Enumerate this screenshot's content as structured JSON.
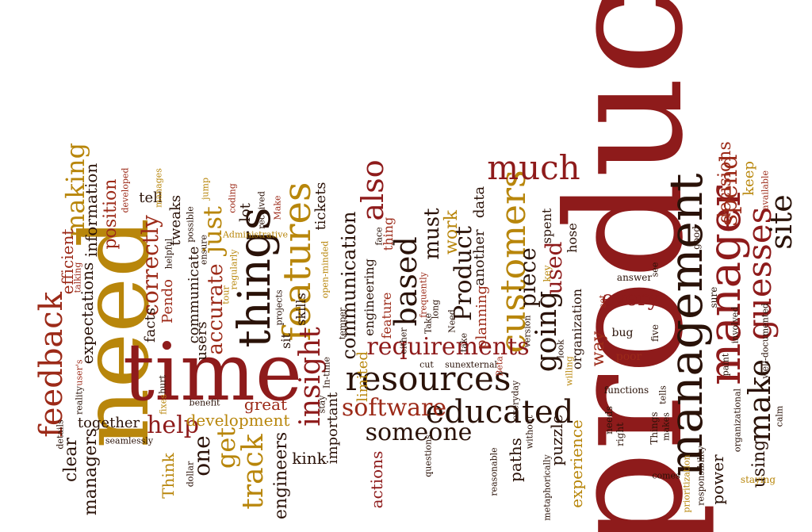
{
  "colors": {
    "dark_red": "#8e1b1b",
    "maroon": "#5a0f12",
    "brick": "#9c2a18",
    "burnt_orange": "#a64a14",
    "gold": "#b8860b",
    "ochre": "#c07a12",
    "near_black": "#2a1208"
  },
  "words": [
    {
      "text": "product",
      "color": "#8e1b1b"
    },
    {
      "text": "need",
      "color": "#b8860b"
    },
    {
      "text": "time",
      "color": "#8e1b1b"
    },
    {
      "text": "management",
      "color": "#2a1208"
    },
    {
      "text": "manager",
      "color": "#8e1b1b"
    },
    {
      "text": "things",
      "color": "#2a1208"
    },
    {
      "text": "features",
      "color": "#b8860b"
    },
    {
      "text": "customers",
      "color": "#b8860b"
    },
    {
      "text": "resources",
      "color": "#2a1208"
    },
    {
      "text": "educated",
      "color": "#2a1208"
    },
    {
      "text": "requirements",
      "color": "#8e1b1b"
    },
    {
      "text": "feedback",
      "color": "#9c2a18"
    },
    {
      "text": "much",
      "color": "#8e1b1b"
    },
    {
      "text": "guesses",
      "color": "#8e1b1b"
    },
    {
      "text": "insight",
      "color": "#8e1b1b"
    },
    {
      "text": "also",
      "color": "#8e1b1b"
    },
    {
      "text": "software",
      "color": "#9c2a18"
    },
    {
      "text": "someone",
      "color": "#2a1208"
    },
    {
      "text": "going",
      "color": "#2a1208"
    },
    {
      "text": "Product",
      "color": "#2a1208"
    },
    {
      "text": "make",
      "color": "#2a1208"
    },
    {
      "text": "site",
      "color": "#2a1208"
    },
    {
      "text": "making",
      "color": "#b8860b"
    },
    {
      "text": "track",
      "color": "#b8860b"
    },
    {
      "text": "based",
      "color": "#2a1208"
    },
    {
      "text": "spend",
      "color": "#9c2a18"
    },
    {
      "text": "help",
      "color": "#8e1b1b"
    },
    {
      "text": "get",
      "color": "#b8860b"
    },
    {
      "text": "correctly",
      "color": "#9c2a18"
    },
    {
      "text": "communication",
      "color": "#2a1208"
    },
    {
      "text": "just",
      "color": "#b8860b"
    },
    {
      "text": "piece",
      "color": "#2a1208"
    },
    {
      "text": "used",
      "color": "#8e1b1b"
    },
    {
      "text": "decisions",
      "color": "#9c2a18"
    },
    {
      "text": "every",
      "color": "#8e1b1b"
    },
    {
      "text": "must",
      "color": "#2a1208"
    },
    {
      "text": "work",
      "color": "#b8860b"
    },
    {
      "text": "accurate",
      "color": "#9c2a18"
    },
    {
      "text": "efficient",
      "color": "#9c2a18"
    },
    {
      "text": "position",
      "color": "#9c2a18"
    },
    {
      "text": "information",
      "color": "#2a1208"
    },
    {
      "text": "expectations",
      "color": "#2a1208"
    },
    {
      "text": "one",
      "color": "#2a1208"
    },
    {
      "text": "clear",
      "color": "#2a1208"
    },
    {
      "text": "together",
      "color": "#2a1208"
    },
    {
      "text": "managers",
      "color": "#2a1208"
    },
    {
      "text": "Think",
      "color": "#b8860b"
    },
    {
      "text": "development",
      "color": "#b8860b"
    },
    {
      "text": "great",
      "color": "#9c2a18"
    },
    {
      "text": "engineers",
      "color": "#2a1208"
    },
    {
      "text": "kink",
      "color": "#2a1208"
    },
    {
      "text": "lot",
      "color": "#2a1208"
    },
    {
      "text": "tweaks",
      "color": "#2a1208"
    },
    {
      "text": "communicate",
      "color": "#2a1208"
    },
    {
      "text": "users",
      "color": "#2a1208"
    },
    {
      "text": "facts",
      "color": "#2a1208"
    },
    {
      "text": "Pendo",
      "color": "#9c2a18"
    },
    {
      "text": "tell",
      "color": "#2a1208"
    },
    {
      "text": "skills",
      "color": "#2a1208"
    },
    {
      "text": "sit",
      "color": "#2a1208"
    },
    {
      "text": "tickets",
      "color": "#2a1208"
    },
    {
      "text": "important",
      "color": "#2a1208"
    },
    {
      "text": "actions",
      "color": "#8e1b1b"
    },
    {
      "text": "limited",
      "color": "#b8860b"
    },
    {
      "text": "engineering",
      "color": "#2a1208"
    },
    {
      "text": "feature",
      "color": "#9c2a18"
    },
    {
      "text": "thing",
      "color": "#9c2a18"
    },
    {
      "text": "planning",
      "color": "#9c2a18"
    },
    {
      "text": "another",
      "color": "#2a1208"
    },
    {
      "text": "data",
      "color": "#2a1208"
    },
    {
      "text": "paths",
      "color": "#2a1208"
    },
    {
      "text": "puzzle",
      "color": "#2a1208"
    },
    {
      "text": "experience",
      "color": "#b8860b"
    },
    {
      "text": "spent",
      "color": "#2a1208"
    },
    {
      "text": "hose",
      "color": "#2a1208"
    },
    {
      "text": "organization",
      "color": "#2a1208"
    },
    {
      "text": "way",
      "color": "#9c2a18"
    },
    {
      "text": "using",
      "color": "#2a1208"
    },
    {
      "text": "power",
      "color": "#2a1208"
    },
    {
      "text": "keep",
      "color": "#b8860b"
    },
    {
      "text": "answer",
      "color": "#2a1208"
    },
    {
      "text": "bug",
      "color": "#2a1208"
    },
    {
      "text": "poor",
      "color": "#9c2a18"
    },
    {
      "text": "five",
      "color": "#2a1208"
    },
    {
      "text": "functions",
      "color": "#2a1208"
    },
    {
      "text": "tells",
      "color": "#2a1208"
    },
    {
      "text": "needs",
      "color": "#2a1208"
    },
    {
      "text": "right",
      "color": "#2a1208"
    },
    {
      "text": "Things",
      "color": "#2a1208"
    },
    {
      "text": "makes",
      "color": "#2a1208"
    },
    {
      "text": "comes",
      "color": "#2a1208"
    },
    {
      "text": "prioritization",
      "color": "#b8860b"
    },
    {
      "text": "responsibility",
      "color": "#2a1208"
    },
    {
      "text": "staying",
      "color": "#b8860b"
    },
    {
      "text": "calm",
      "color": "#2a1208"
    },
    {
      "text": "well-documented",
      "color": "#2a1208"
    },
    {
      "text": "available",
      "color": "#9c2a18"
    },
    {
      "text": "good",
      "color": "#2a1208"
    },
    {
      "text": "sure",
      "color": "#2a1208"
    },
    {
      "text": "paint",
      "color": "#2a1208"
    },
    {
      "text": "involved",
      "color": "#2a1208"
    },
    {
      "text": "organizational",
      "color": "#2a1208"
    },
    {
      "text": "see",
      "color": "#2a1208"
    },
    {
      "text": "set",
      "color": "#9c2a18"
    },
    {
      "text": "key",
      "color": "#b8860b"
    },
    {
      "text": "look",
      "color": "#2a1208"
    },
    {
      "text": "willing",
      "color": "#b8860b"
    },
    {
      "text": "everyday",
      "color": "#2a1208"
    },
    {
      "text": "Beta",
      "color": "#9c2a18"
    },
    {
      "text": "external",
      "color": "#2a1208"
    },
    {
      "text": "version",
      "color": "#2a1208"
    },
    {
      "text": "without",
      "color": "#2a1208"
    },
    {
      "text": "metaphorically",
      "color": "#2a1208"
    },
    {
      "text": "reasonable",
      "color": "#2a1208"
    },
    {
      "text": "take",
      "color": "#2a1208"
    },
    {
      "text": "frequently",
      "color": "#9c2a18"
    },
    {
      "text": "Need",
      "color": "#2a1208"
    },
    {
      "text": "long",
      "color": "#2a1208"
    },
    {
      "text": "Take",
      "color": "#2a1208"
    },
    {
      "text": "sun",
      "color": "#2a1208"
    },
    {
      "text": "cut",
      "color": "#2a1208"
    },
    {
      "text": "either",
      "color": "#2a1208"
    },
    {
      "text": "face",
      "color": "#2a1208"
    },
    {
      "text": "questions",
      "color": "#2a1208"
    },
    {
      "text": "temper",
      "color": "#2a1208"
    },
    {
      "text": "open-minded",
      "color": "#b8860b"
    },
    {
      "text": "stay",
      "color": "#2a1208"
    },
    {
      "text": "In-time",
      "color": "#2a1208"
    },
    {
      "text": "Make",
      "color": "#9c2a18"
    },
    {
      "text": "received",
      "color": "#2a1208"
    },
    {
      "text": "projects",
      "color": "#2a1208"
    },
    {
      "text": "coding",
      "color": "#9c2a18"
    },
    {
      "text": "regularly",
      "color": "#b8860b"
    },
    {
      "text": "Administrative",
      "color": "#b8860b"
    },
    {
      "text": "tour",
      "color": "#b8860b"
    },
    {
      "text": "jump",
      "color": "#b8860b"
    },
    {
      "text": "ensure",
      "color": "#2a1208"
    },
    {
      "text": "possible",
      "color": "#2a1208"
    },
    {
      "text": "benefit",
      "color": "#2a1208"
    },
    {
      "text": "helpful",
      "color": "#2a1208"
    },
    {
      "text": "manages",
      "color": "#b8860b"
    },
    {
      "text": "developed",
      "color": "#9c2a18"
    },
    {
      "text": "fixes",
      "color": "#b8860b"
    },
    {
      "text": "hurt",
      "color": "#2a1208"
    },
    {
      "text": "dollar",
      "color": "#2a1208"
    },
    {
      "text": "talking",
      "color": "#9c2a18"
    },
    {
      "text": "reality",
      "color": "#2a1208"
    },
    {
      "text": "user's",
      "color": "#9c2a18"
    },
    {
      "text": "details",
      "color": "#2a1208"
    },
    {
      "text": "seamlessly",
      "color": "#2a1208"
    }
  ]
}
